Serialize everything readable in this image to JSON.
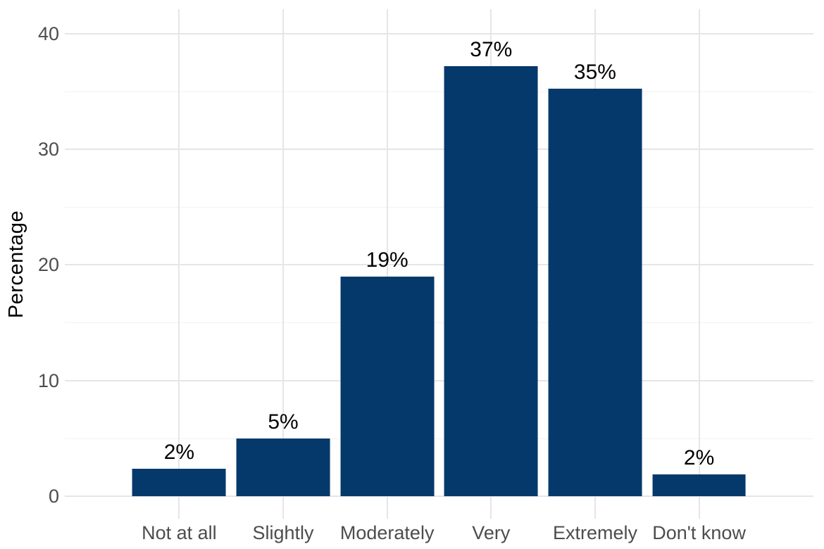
{
  "chart_data": {
    "type": "bar",
    "title": "",
    "categories": [
      "Not at all",
      "Slightly",
      "Moderately",
      "Very",
      "Extremely",
      "Don't know"
    ],
    "values": [
      2,
      5,
      19,
      37,
      35,
      2
    ],
    "bar_labels": [
      "2%",
      "5%",
      "19%",
      "37%",
      "35%",
      "2%"
    ],
    "bar_heights_precise": [
      2.4,
      5.0,
      19.0,
      37.2,
      35.2,
      1.9
    ],
    "xlabel": "",
    "ylabel": "Percentage",
    "y_ticks": [
      0,
      10,
      20,
      30,
      40
    ],
    "y_minor_ticks": [
      5,
      15,
      25,
      35
    ],
    "ylim": [
      -1.95,
      42.1
    ],
    "x_category_expand": 0.6,
    "bar_width_fraction": 0.9,
    "grid": true,
    "legend_position": "none",
    "colors": {
      "bar": "#05396b",
      "grid_major": "#e6e6e6",
      "grid_minor": "#f2f2f2",
      "tick_label": "#4d4d4d",
      "bar_label": "#000000",
      "axis_title": "#000000",
      "background": "#ffffff"
    }
  }
}
